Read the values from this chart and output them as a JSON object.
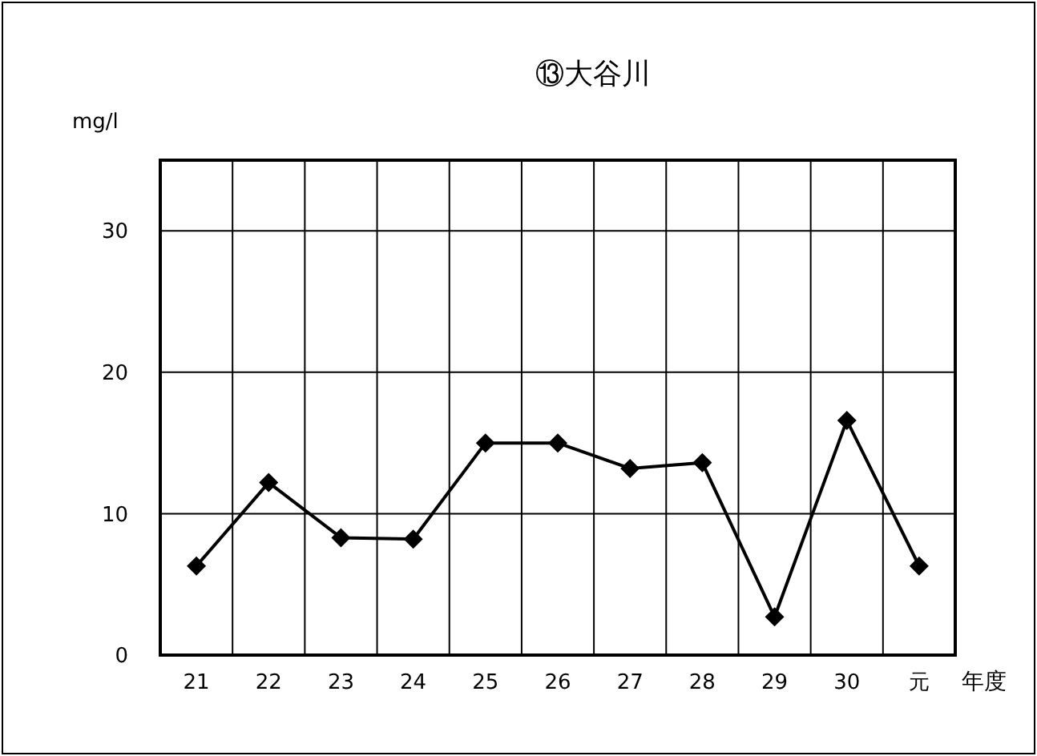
{
  "chart_data": {
    "type": "line",
    "title": "⑬大谷川",
    "ylabel": "mg/l",
    "xlabel": "年度",
    "categories": [
      "21",
      "22",
      "23",
      "24",
      "25",
      "26",
      "27",
      "28",
      "29",
      "30",
      "元"
    ],
    "series": [
      {
        "color": "#000000",
        "values": [
          6.3,
          12.2,
          8.3,
          8.2,
          15.0,
          15.0,
          13.2,
          13.6,
          2.7,
          16.6,
          6.3
        ]
      }
    ],
    "ylim": [
      0,
      35
    ],
    "yticks": [
      0,
      10,
      20,
      30
    ],
    "grid": true,
    "marker": "diamond",
    "line_style": "solid"
  }
}
